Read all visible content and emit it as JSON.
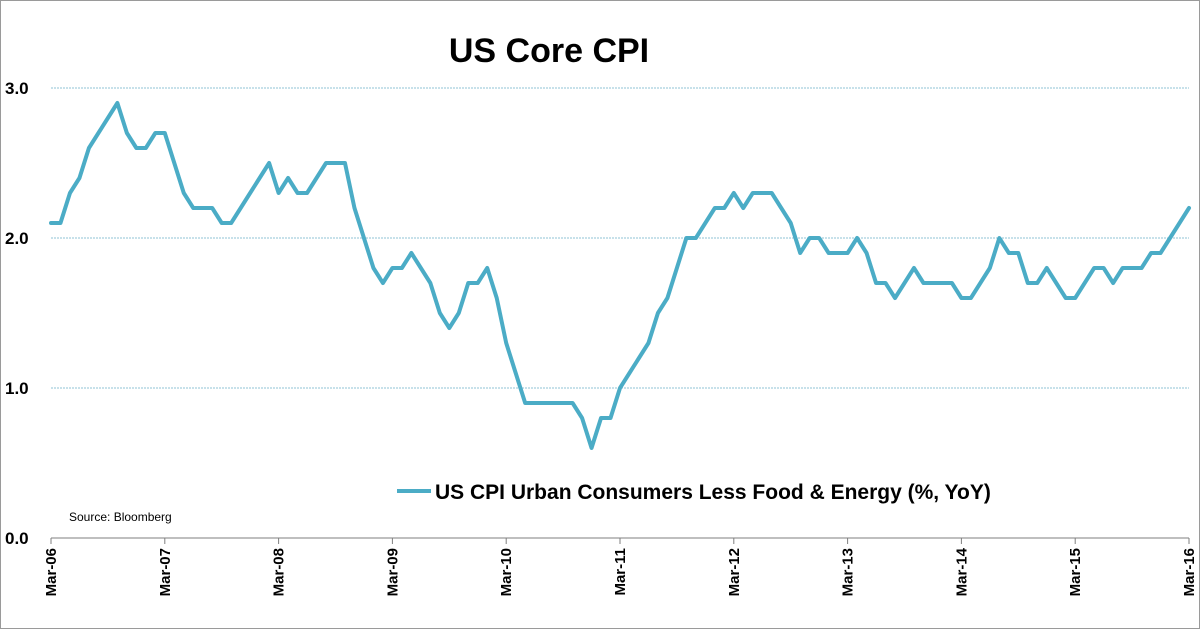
{
  "chart_data": {
    "type": "line",
    "title": "US Core CPI",
    "source": "Source: Bloomberg",
    "ylim": [
      0,
      3
    ],
    "yticks": [
      "0.0",
      "1.0",
      "2.0",
      "3.0"
    ],
    "ytick_values": [
      0,
      1,
      2,
      3
    ],
    "x_tick_labels": [
      "Mar-06",
      "Mar-07",
      "Mar-08",
      "Mar-09",
      "Mar-10",
      "Mar-11",
      "Mar-12",
      "Mar-13",
      "Mar-14",
      "Mar-15",
      "Mar-16"
    ],
    "x_start": "Mar-06",
    "x_end": "Mar-16",
    "grid": true,
    "legend_position": "bottom-center",
    "color": "#4bacc6",
    "series": [
      {
        "name": "US CPI Urban Consumers Less Food & Energy (%, YoY)",
        "values": [
          2.1,
          2.1,
          2.3,
          2.4,
          2.6,
          2.7,
          2.8,
          2.9,
          2.7,
          2.6,
          2.6,
          2.7,
          2.7,
          2.5,
          2.3,
          2.2,
          2.2,
          2.2,
          2.1,
          2.1,
          2.2,
          2.3,
          2.4,
          2.5,
          2.3,
          2.4,
          2.3,
          2.3,
          2.4,
          2.5,
          2.5,
          2.5,
          2.2,
          2.0,
          1.8,
          1.7,
          1.8,
          1.8,
          1.9,
          1.8,
          1.7,
          1.5,
          1.4,
          1.5,
          1.7,
          1.7,
          1.8,
          1.6,
          1.3,
          1.1,
          0.9,
          0.9,
          0.9,
          0.9,
          0.9,
          0.9,
          0.8,
          0.6,
          0.8,
          0.8,
          1.0,
          1.1,
          1.2,
          1.3,
          1.5,
          1.6,
          1.8,
          2.0,
          2.0,
          2.1,
          2.2,
          2.2,
          2.3,
          2.2,
          2.3,
          2.3,
          2.3,
          2.2,
          2.1,
          1.9,
          2.0,
          2.0,
          1.9,
          1.9,
          1.9,
          2.0,
          1.9,
          1.7,
          1.7,
          1.6,
          1.7,
          1.8,
          1.7,
          1.7,
          1.7,
          1.7,
          1.6,
          1.6,
          1.7,
          1.8,
          2.0,
          1.9,
          1.9,
          1.7,
          1.7,
          1.8,
          1.7,
          1.6,
          1.6,
          1.7,
          1.8,
          1.8,
          1.7,
          1.8,
          1.8,
          1.8,
          1.9,
          1.9,
          2.0,
          2.1,
          2.2
        ]
      }
    ]
  }
}
